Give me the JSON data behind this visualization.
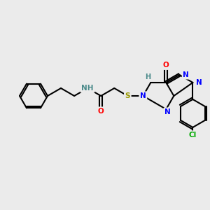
{
  "bg_color": "#ebebeb",
  "bond_color": "#000000",
  "atom_colors": {
    "N": "#0000ff",
    "O": "#ff0000",
    "S": "#999900",
    "Cl": "#00aa00",
    "H": "#4a8a8a",
    "C": "#000000"
  },
  "font_size": 7.5,
  "fig_size": [
    3.0,
    3.0
  ],
  "dpi": 100
}
